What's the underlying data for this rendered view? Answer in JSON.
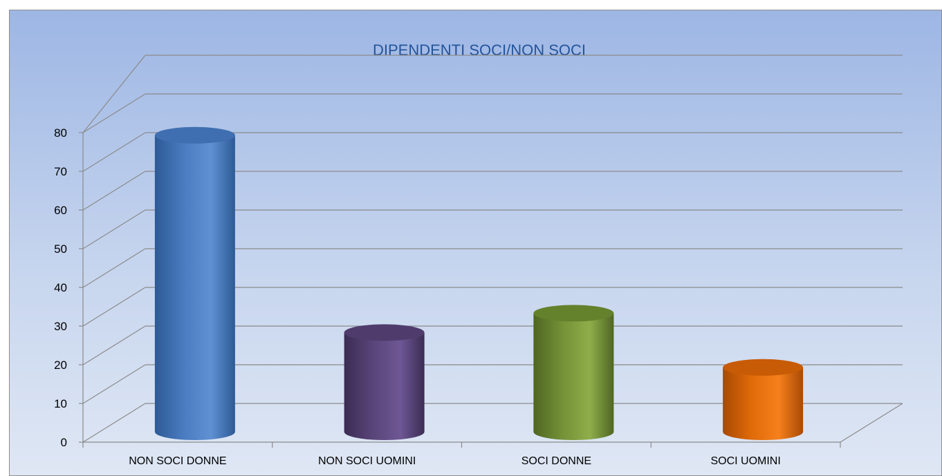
{
  "chart_data": {
    "type": "bar",
    "title": "DIPENDENTI SOCI/NON SOCI",
    "categories": [
      "NON SOCI DONNE",
      "NON SOCI UOMINI",
      "SOCI DONNE",
      "SOCI UOMINI"
    ],
    "values": [
      77,
      26,
      31,
      17
    ],
    "ylim": [
      0,
      80
    ],
    "yticks": [
      "0",
      "10",
      "20",
      "30",
      "40",
      "50",
      "60",
      "70",
      "80"
    ],
    "grid": true,
    "legend": "none",
    "style": "3d cylinder",
    "colors": [
      "#4f81bd",
      "#604a7b",
      "#77933c",
      "#e46c0a"
    ],
    "series_colors": [
      {
        "light": "#5f91d3",
        "mid": "#4a7bc0",
        "dark": "#2d5a96",
        "top": "#3f6fb0"
      },
      {
        "light": "#6e5795",
        "mid": "#594478",
        "dark": "#3b2c53",
        "top": "#4f3c6c"
      },
      {
        "light": "#8fae4a",
        "mid": "#739136",
        "dark": "#4f6622",
        "top": "#64812c"
      },
      {
        "light": "#f5801c",
        "mid": "#df6a08",
        "dark": "#a84a04",
        "top": "#c85b06"
      }
    ]
  }
}
